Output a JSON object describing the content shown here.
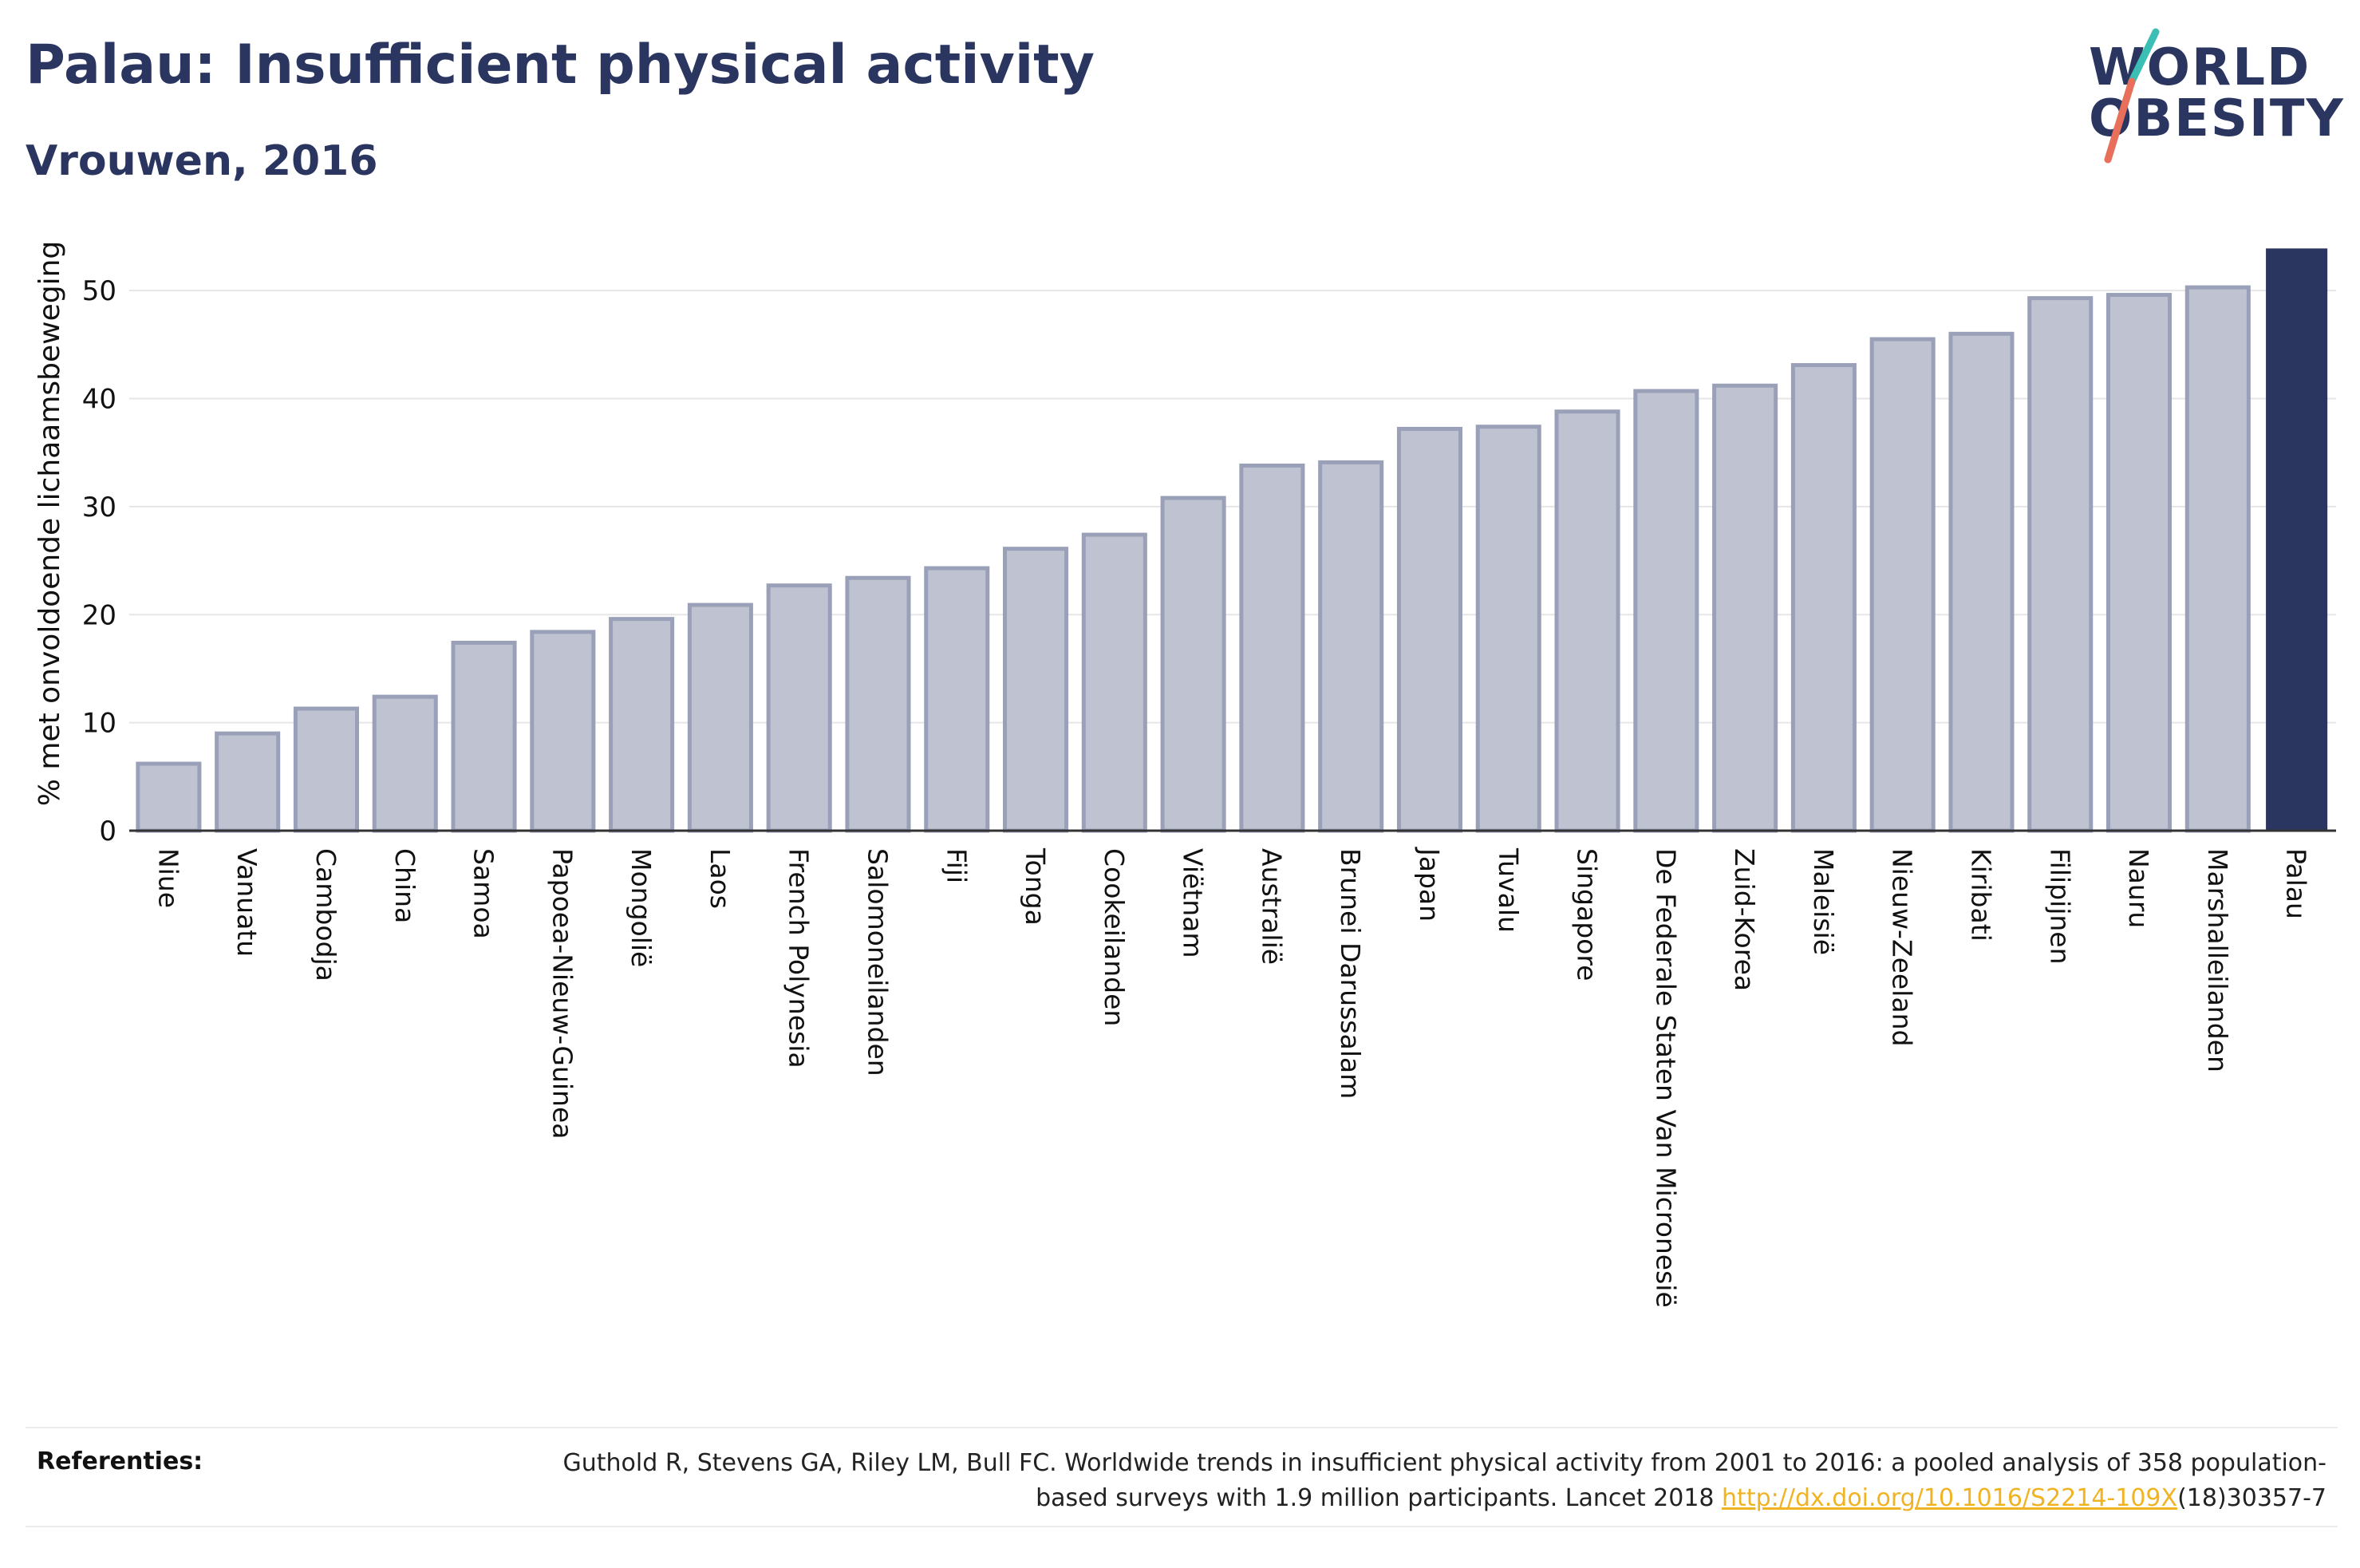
{
  "header": {
    "title": "Palau: Insufficient physical activity",
    "subtitle": "Vrouwen, 2016"
  },
  "logo": {
    "line1": "WORLD",
    "line2": "OBESITY",
    "colors": {
      "text": "#2a3560",
      "slash_top": "#3bbfb5",
      "slash_bottom": "#e8705a"
    }
  },
  "colors": {
    "bar_fill": "#bfc3d1",
    "bar_stroke": "#9aa0b8",
    "highlight": "#2a3560",
    "grid": "#e6e6e6",
    "axis": "#333333"
  },
  "chart_data": {
    "type": "bar",
    "ylabel": "% met onvoldoende lichaamsbeweging",
    "ylim": [
      0,
      54
    ],
    "yticks": [
      0,
      10,
      20,
      30,
      40,
      50
    ],
    "grid": true,
    "highlight_category": "Palau",
    "categories": [
      "Niue",
      "Vanuatu",
      "Cambodja",
      "China",
      "Samoa",
      "Papoea-Nieuw-Guinea",
      "Mongolië",
      "Laos",
      "French Polynesia",
      "Salomoneilanden",
      "Fiji",
      "Tonga",
      "Cookeilanden",
      "Viëtnam",
      "Australië",
      "Brunei Darussalam",
      "Japan",
      "Tuvalu",
      "Singapore",
      "De Federale Staten Van Micronesië",
      "Zuid-Korea",
      "Maleisië",
      "Nieuw-Zeeland",
      "Kiribati",
      "Filipijnen",
      "Nauru",
      "Marshalleilanden",
      "Palau"
    ],
    "values": [
      6.2,
      9.0,
      11.3,
      12.4,
      17.4,
      18.4,
      19.6,
      20.9,
      22.7,
      23.4,
      24.3,
      26.1,
      27.4,
      30.8,
      33.8,
      34.1,
      37.2,
      37.4,
      38.8,
      40.7,
      41.2,
      43.1,
      45.5,
      46.0,
      49.3,
      49.6,
      50.3,
      53.9
    ]
  },
  "references": {
    "label": "Referenties:",
    "text_before": "Guthold R, Stevens GA, Riley LM, Bull FC. Worldwide trends in insufficient physical activity from 2001 to 2016: a pooled analysis of 358 population-based surveys with 1.9 million participants. Lancet 2018 ",
    "link": "http://dx.doi.org/10.1016/S2214-109X",
    "text_after": "(18)30357-7"
  }
}
